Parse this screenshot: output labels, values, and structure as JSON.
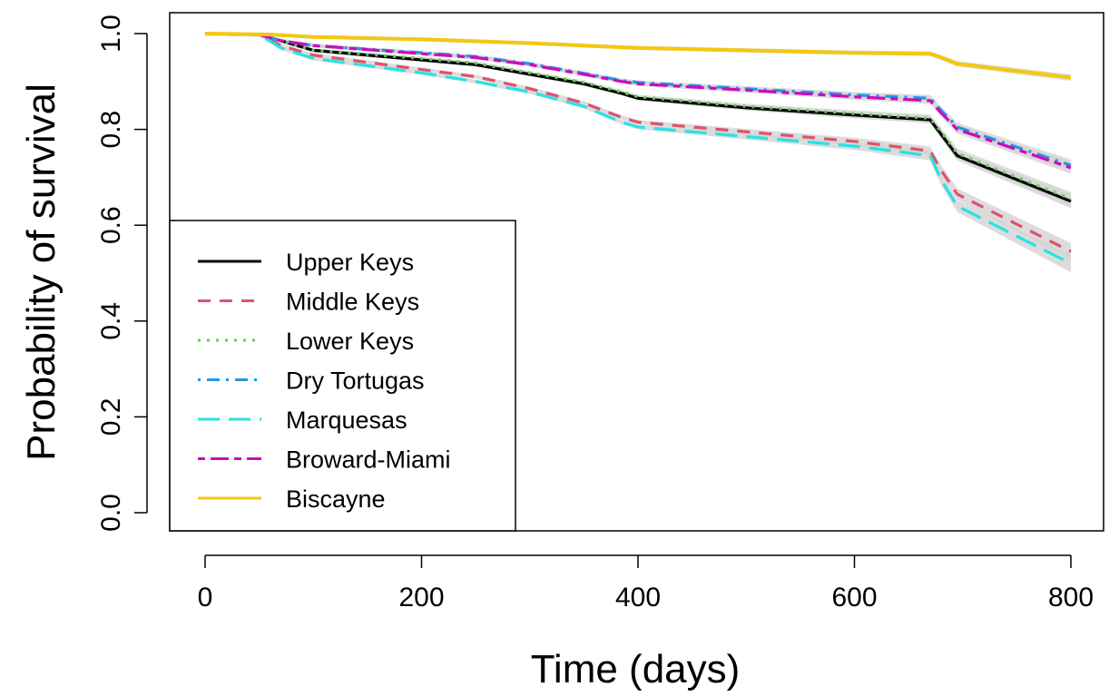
{
  "chart_data": {
    "type": "line",
    "title": "",
    "xlabel": "Time (days)",
    "ylabel": "Probability of survival",
    "xlim": [
      0,
      800
    ],
    "ylim": [
      0,
      1
    ],
    "xticks": [
      0,
      200,
      400,
      600,
      800
    ],
    "xtick_labels": [
      "0",
      "200",
      "400",
      "600",
      "800"
    ],
    "yticks": [
      0,
      0.2,
      0.4,
      0.6,
      0.8,
      1.0
    ],
    "ytick_labels": [
      "0.0",
      "0.2",
      "0.4",
      "0.6",
      "0.8",
      "1.0"
    ],
    "grid": false,
    "legend_position": "bottom-left",
    "confidence_band_color": "#d3d3d3",
    "series": [
      {
        "name": "Upper Keys",
        "color": "#000000",
        "dash": "solid",
        "x": [
          0,
          50,
          70,
          100,
          200,
          250,
          300,
          350,
          385,
          400,
          500,
          600,
          670,
          680,
          695,
          800
        ],
        "y": [
          1.0,
          0.998,
          0.985,
          0.965,
          0.945,
          0.935,
          0.915,
          0.895,
          0.875,
          0.865,
          0.845,
          0.83,
          0.82,
          0.79,
          0.745,
          0.65
        ]
      },
      {
        "name": "Middle Keys",
        "color": "#df536b",
        "dash": "dashed",
        "x": [
          0,
          50,
          70,
          100,
          200,
          250,
          300,
          350,
          385,
          400,
          500,
          600,
          670,
          680,
          695,
          800
        ],
        "y": [
          1.0,
          0.998,
          0.975,
          0.955,
          0.925,
          0.91,
          0.885,
          0.855,
          0.825,
          0.815,
          0.795,
          0.775,
          0.755,
          0.715,
          0.665,
          0.545
        ]
      },
      {
        "name": "Lower Keys",
        "color": "#61d04f",
        "dash": "dotted",
        "x": [
          0,
          50,
          70,
          100,
          200,
          250,
          300,
          350,
          385,
          400,
          500,
          600,
          670,
          680,
          695,
          800
        ],
        "y": [
          1.0,
          0.998,
          0.985,
          0.965,
          0.948,
          0.938,
          0.918,
          0.898,
          0.878,
          0.868,
          0.848,
          0.833,
          0.823,
          0.795,
          0.75,
          0.655
        ]
      },
      {
        "name": "Dry Tortugas",
        "color": "#2297e6",
        "dash": "dotdash",
        "x": [
          0,
          50,
          70,
          100,
          200,
          250,
          300,
          350,
          385,
          400,
          500,
          600,
          670,
          680,
          695,
          800
        ],
        "y": [
          1.0,
          0.998,
          0.985,
          0.975,
          0.96,
          0.952,
          0.937,
          0.917,
          0.902,
          0.898,
          0.885,
          0.872,
          0.865,
          0.84,
          0.805,
          0.725
        ]
      },
      {
        "name": "Marquesas",
        "color": "#28e2e5",
        "dash": "longdash",
        "x": [
          0,
          50,
          70,
          100,
          200,
          250,
          300,
          350,
          385,
          400,
          500,
          600,
          670,
          680,
          695,
          800
        ],
        "y": [
          1.0,
          0.998,
          0.97,
          0.948,
          0.918,
          0.9,
          0.878,
          0.848,
          0.815,
          0.805,
          0.785,
          0.765,
          0.745,
          0.695,
          0.64,
          0.52
        ]
      },
      {
        "name": "Broward-Miami",
        "color": "#cd0bbc",
        "dash": "twodash",
        "x": [
          0,
          50,
          70,
          100,
          200,
          250,
          300,
          350,
          385,
          400,
          500,
          600,
          670,
          680,
          695,
          800
        ],
        "y": [
          1.0,
          0.998,
          0.985,
          0.975,
          0.958,
          0.95,
          0.935,
          0.915,
          0.9,
          0.895,
          0.882,
          0.868,
          0.86,
          0.835,
          0.8,
          0.72
        ]
      },
      {
        "name": "Biscayne",
        "color": "#f5c710",
        "dash": "solid",
        "x": [
          0,
          60,
          100,
          200,
          300,
          400,
          500,
          600,
          670,
          680,
          695,
          800
        ],
        "y": [
          1.0,
          0.998,
          0.993,
          0.988,
          0.98,
          0.97,
          0.965,
          0.96,
          0.958,
          0.95,
          0.937,
          0.908
        ]
      }
    ]
  }
}
